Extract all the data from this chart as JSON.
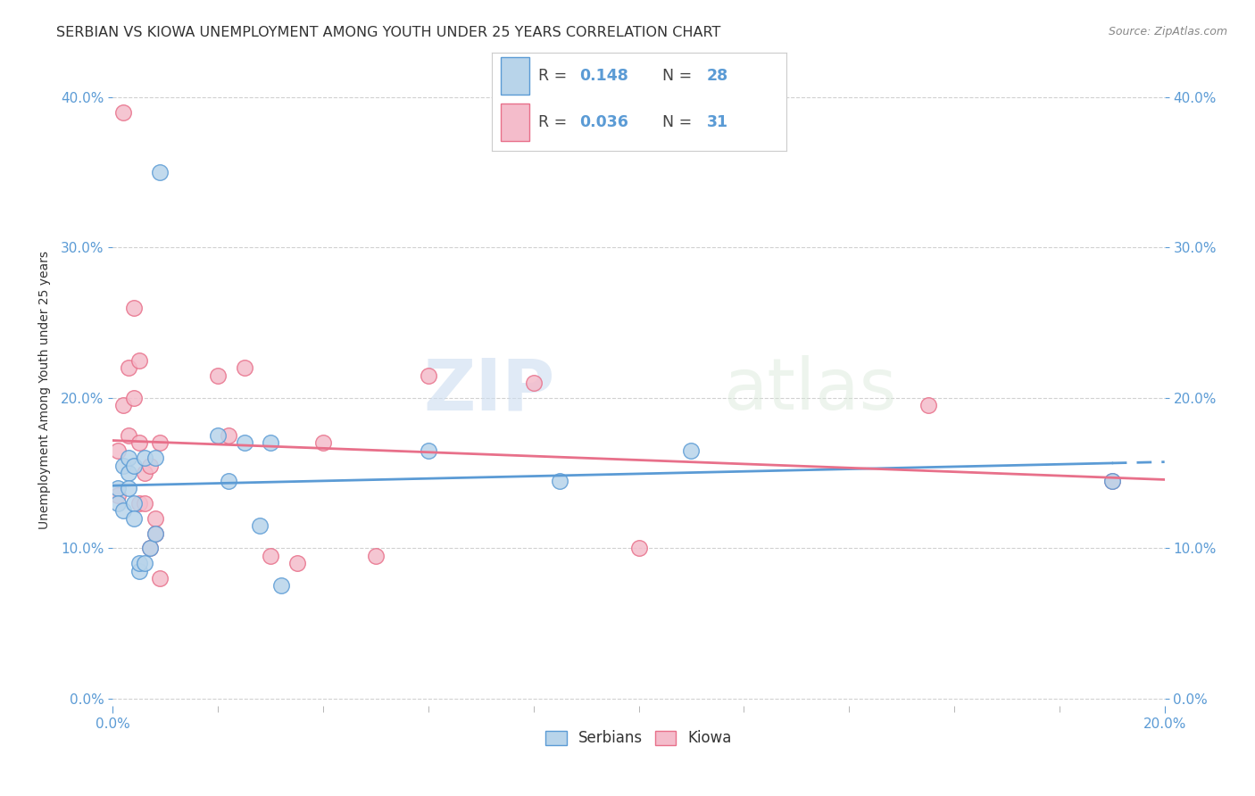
{
  "title": "SERBIAN VS KIOWA UNEMPLOYMENT AMONG YOUTH UNDER 25 YEARS CORRELATION CHART",
  "source": "Source: ZipAtlas.com",
  "ylabel": "Unemployment Among Youth under 25 years",
  "serbian_R": "0.148",
  "serbian_N": "28",
  "kiowa_R": "0.036",
  "kiowa_N": "31",
  "serbian_color": "#b8d4ea",
  "kiowa_color": "#f4bccb",
  "serbian_line_color": "#5b9bd5",
  "kiowa_line_color": "#e8708a",
  "background_color": "#ffffff",
  "grid_color": "#cccccc",
  "title_color": "#333333",
  "axis_label_color": "#5b9bd5",
  "xlim": [
    0.0,
    0.2
  ],
  "ylim": [
    -0.005,
    0.415
  ],
  "xticks": [
    0.0,
    0.2
  ],
  "yticks": [
    0.0,
    0.1,
    0.2,
    0.3,
    0.4
  ],
  "serbian_x": [
    0.001,
    0.001,
    0.002,
    0.002,
    0.003,
    0.003,
    0.003,
    0.004,
    0.004,
    0.004,
    0.005,
    0.005,
    0.006,
    0.006,
    0.007,
    0.008,
    0.008,
    0.009,
    0.02,
    0.022,
    0.025,
    0.028,
    0.03,
    0.032,
    0.06,
    0.085,
    0.11,
    0.19
  ],
  "serbian_y": [
    0.14,
    0.13,
    0.155,
    0.125,
    0.15,
    0.14,
    0.16,
    0.155,
    0.13,
    0.12,
    0.085,
    0.09,
    0.09,
    0.16,
    0.1,
    0.11,
    0.16,
    0.35,
    0.175,
    0.145,
    0.17,
    0.115,
    0.17,
    0.075,
    0.165,
    0.145,
    0.165,
    0.145
  ],
  "kiowa_x": [
    0.001,
    0.001,
    0.002,
    0.002,
    0.003,
    0.003,
    0.004,
    0.004,
    0.005,
    0.005,
    0.005,
    0.006,
    0.006,
    0.007,
    0.007,
    0.008,
    0.008,
    0.009,
    0.009,
    0.02,
    0.022,
    0.025,
    0.03,
    0.035,
    0.04,
    0.05,
    0.06,
    0.08,
    0.1,
    0.155,
    0.19
  ],
  "kiowa_y": [
    0.165,
    0.135,
    0.39,
    0.195,
    0.22,
    0.175,
    0.26,
    0.2,
    0.225,
    0.17,
    0.13,
    0.15,
    0.13,
    0.155,
    0.1,
    0.12,
    0.11,
    0.17,
    0.08,
    0.215,
    0.175,
    0.22,
    0.095,
    0.09,
    0.17,
    0.095,
    0.215,
    0.21,
    0.1,
    0.195,
    0.145
  ],
  "watermark_zip": "ZIP",
  "watermark_atlas": "atlas",
  "title_fontsize": 11.5,
  "axis_label_fontsize": 10,
  "tick_fontsize": 11
}
